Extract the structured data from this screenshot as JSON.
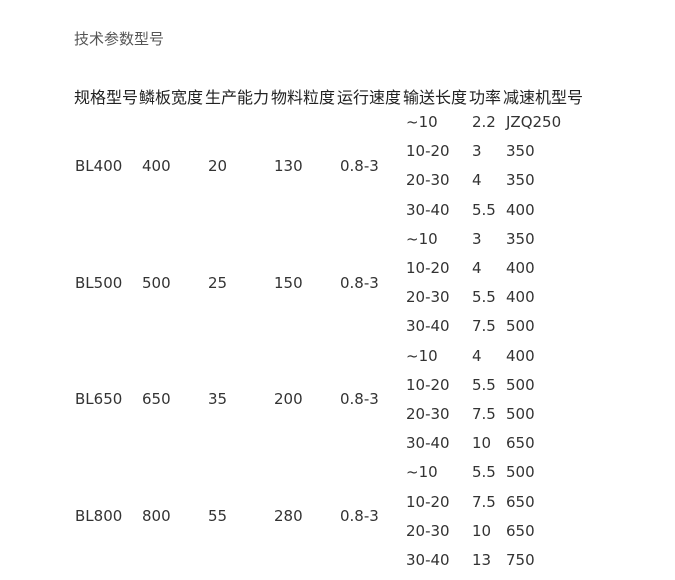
{
  "title": "技术参数型号",
  "headers": [
    "规格型号",
    "鳞板宽度",
    "生产能力",
    "物料粒度",
    "运行速度",
    "输送长度",
    "功率",
    "减速机型号"
  ],
  "groups": [
    {
      "model": "BL400",
      "width": "400",
      "capacity": "20",
      "granularity": "130",
      "speed": "0.8-3",
      "rows": [
        {
          "length": "~10",
          "power": "2.2",
          "reducer": "JZQ250"
        },
        {
          "length": "10-20",
          "power": "3",
          "reducer": "350"
        },
        {
          "length": "20-30",
          "power": "4",
          "reducer": "350"
        },
        {
          "length": "30-40",
          "power": "5.5",
          "reducer": "400"
        }
      ]
    },
    {
      "model": "BL500",
      "width": "500",
      "capacity": "25",
      "granularity": "150",
      "speed": "0.8-3",
      "rows": [
        {
          "length": "~10",
          "power": "3",
          "reducer": "350"
        },
        {
          "length": "10-20",
          "power": "4",
          "reducer": "400"
        },
        {
          "length": "20-30",
          "power": "5.5",
          "reducer": "400"
        },
        {
          "length": "30-40",
          "power": "7.5",
          "reducer": "500"
        }
      ]
    },
    {
      "model": "BL650",
      "width": "650",
      "capacity": "35",
      "granularity": "200",
      "speed": "0.8-3",
      "rows": [
        {
          "length": "~10",
          "power": "4",
          "reducer": "400"
        },
        {
          "length": "10-20",
          "power": "5.5",
          "reducer": "500"
        },
        {
          "length": "20-30",
          "power": "7.5",
          "reducer": "500"
        },
        {
          "length": "30-40",
          "power": "10",
          "reducer": "650"
        }
      ]
    },
    {
      "model": "BL800",
      "width": "800",
      "capacity": "55",
      "granularity": "280",
      "speed": "0.8-3",
      "rows": [
        {
          "length": "~10",
          "power": "5.5",
          "reducer": "500"
        },
        {
          "length": "10-20",
          "power": "7.5",
          "reducer": "650"
        },
        {
          "length": "20-30",
          "power": "10",
          "reducer": "650"
        },
        {
          "length": "30-40",
          "power": "13",
          "reducer": "750"
        }
      ]
    }
  ]
}
